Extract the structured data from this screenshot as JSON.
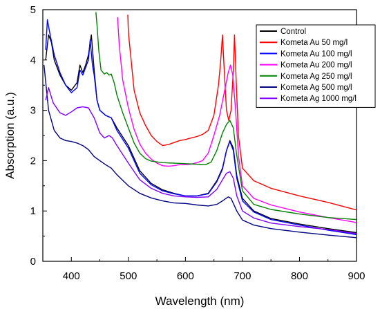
{
  "chart_data": {
    "type": "line",
    "title": "",
    "xlabel": "Wavelength (nm)",
    "ylabel": "Absorption (a.u.)",
    "xlim": [
      350,
      900
    ],
    "ylim": [
      0,
      5
    ],
    "xticks": [
      400,
      500,
      600,
      700,
      800,
      900
    ],
    "yticks": [
      0,
      1,
      2,
      3,
      4,
      5
    ],
    "grid": false,
    "legend_position": "top-right",
    "series": [
      {
        "name": "Control",
        "color": "#000000",
        "points": [
          [
            355,
            4.0
          ],
          [
            360,
            4.5
          ],
          [
            365,
            4.35
          ],
          [
            370,
            4.0
          ],
          [
            380,
            3.7
          ],
          [
            390,
            3.5
          ],
          [
            400,
            3.4
          ],
          [
            410,
            3.55
          ],
          [
            415,
            3.9
          ],
          [
            420,
            3.75
          ],
          [
            425,
            3.9
          ],
          [
            430,
            4.1
          ],
          [
            435,
            4.5
          ],
          [
            440,
            3.8
          ],
          [
            445,
            3.2
          ],
          [
            450,
            3.0
          ],
          [
            455,
            2.95
          ],
          [
            460,
            2.9
          ],
          [
            470,
            2.85
          ],
          [
            480,
            2.65
          ],
          [
            500,
            2.3
          ],
          [
            520,
            1.8
          ],
          [
            540,
            1.55
          ],
          [
            560,
            1.42
          ],
          [
            580,
            1.35
          ],
          [
            600,
            1.3
          ],
          [
            620,
            1.3
          ],
          [
            640,
            1.35
          ],
          [
            655,
            1.6
          ],
          [
            665,
            1.85
          ],
          [
            672,
            2.2
          ],
          [
            678,
            2.4
          ],
          [
            684,
            2.25
          ],
          [
            690,
            1.7
          ],
          [
            700,
            1.25
          ],
          [
            720,
            1.0
          ],
          [
            750,
            0.85
          ],
          [
            800,
            0.74
          ],
          [
            850,
            0.65
          ],
          [
            900,
            0.57
          ]
        ]
      },
      {
        "name": "Kometa Au 50 mg/l",
        "color": "#ff0000",
        "points": [
          [
            499,
            4.9
          ],
          [
            500,
            4.55
          ],
          [
            510,
            3.4
          ],
          [
            520,
            2.95
          ],
          [
            530,
            2.7
          ],
          [
            540,
            2.5
          ],
          [
            550,
            2.38
          ],
          [
            560,
            2.3
          ],
          [
            570,
            2.32
          ],
          [
            580,
            2.36
          ],
          [
            590,
            2.4
          ],
          [
            600,
            2.42
          ],
          [
            610,
            2.45
          ],
          [
            620,
            2.48
          ],
          [
            630,
            2.52
          ],
          [
            640,
            2.6
          ],
          [
            650,
            2.9
          ],
          [
            658,
            3.5
          ],
          [
            662,
            4.0
          ],
          [
            665,
            4.5
          ],
          [
            668,
            3.8
          ],
          [
            672,
            3.0
          ],
          [
            676,
            2.8
          ],
          [
            680,
            3.0
          ],
          [
            684,
            3.8
          ],
          [
            686,
            4.5
          ],
          [
            689,
            3.6
          ],
          [
            693,
            2.5
          ],
          [
            700,
            1.85
          ],
          [
            720,
            1.6
          ],
          [
            750,
            1.45
          ],
          [
            800,
            1.3
          ],
          [
            850,
            1.17
          ],
          [
            900,
            1.02
          ]
        ]
      },
      {
        "name": "Kometa Au 100 mg/l",
        "color": "#0000ff",
        "points": [
          [
            355,
            4.2
          ],
          [
            358,
            4.8
          ],
          [
            362,
            4.55
          ],
          [
            370,
            4.1
          ],
          [
            380,
            3.75
          ],
          [
            390,
            3.5
          ],
          [
            400,
            3.35
          ],
          [
            410,
            3.45
          ],
          [
            415,
            3.8
          ],
          [
            420,
            3.7
          ],
          [
            425,
            3.85
          ],
          [
            430,
            4.0
          ],
          [
            433,
            4.4
          ],
          [
            437,
            3.9
          ],
          [
            440,
            3.7
          ],
          [
            445,
            3.2
          ],
          [
            450,
            3.0
          ],
          [
            455,
            2.95
          ],
          [
            460,
            2.9
          ],
          [
            470,
            2.85
          ],
          [
            480,
            2.6
          ],
          [
            500,
            2.25
          ],
          [
            520,
            1.75
          ],
          [
            540,
            1.52
          ],
          [
            560,
            1.4
          ],
          [
            580,
            1.34
          ],
          [
            600,
            1.3
          ],
          [
            620,
            1.3
          ],
          [
            640,
            1.34
          ],
          [
            655,
            1.58
          ],
          [
            665,
            1.83
          ],
          [
            672,
            2.2
          ],
          [
            678,
            2.38
          ],
          [
            684,
            2.2
          ],
          [
            690,
            1.65
          ],
          [
            700,
            1.2
          ],
          [
            720,
            0.98
          ],
          [
            750,
            0.83
          ],
          [
            800,
            0.72
          ],
          [
            850,
            0.62
          ],
          [
            900,
            0.53
          ]
        ]
      },
      {
        "name": "Kometa Au 200 mg/l",
        "color": "#ff00ff",
        "points": [
          [
            481,
            4.85
          ],
          [
            484,
            4.3
          ],
          [
            490,
            3.6
          ],
          [
            500,
            3.05
          ],
          [
            510,
            2.62
          ],
          [
            520,
            2.33
          ],
          [
            530,
            2.15
          ],
          [
            540,
            2.03
          ],
          [
            550,
            1.95
          ],
          [
            560,
            1.9
          ],
          [
            570,
            1.89
          ],
          [
            580,
            1.9
          ],
          [
            590,
            1.92
          ],
          [
            600,
            1.92
          ],
          [
            610,
            1.93
          ],
          [
            620,
            1.96
          ],
          [
            630,
            2.0
          ],
          [
            640,
            2.15
          ],
          [
            650,
            2.5
          ],
          [
            660,
            2.9
          ],
          [
            668,
            3.35
          ],
          [
            675,
            3.75
          ],
          [
            679,
            3.9
          ],
          [
            683,
            3.7
          ],
          [
            688,
            3.0
          ],
          [
            693,
            2.1
          ],
          [
            700,
            1.5
          ],
          [
            720,
            1.25
          ],
          [
            750,
            1.12
          ],
          [
            800,
            0.98
          ],
          [
            850,
            0.87
          ],
          [
            900,
            0.77
          ]
        ]
      },
      {
        "name": "Kometa Ag 250 mg/l",
        "color": "#008000",
        "points": [
          [
            443,
            4.95
          ],
          [
            445,
            4.7
          ],
          [
            448,
            4.2
          ],
          [
            452,
            3.8
          ],
          [
            458,
            3.72
          ],
          [
            462,
            3.75
          ],
          [
            466,
            3.7
          ],
          [
            470,
            3.72
          ],
          [
            475,
            3.55
          ],
          [
            480,
            3.3
          ],
          [
            490,
            2.95
          ],
          [
            500,
            2.65
          ],
          [
            510,
            2.35
          ],
          [
            520,
            2.15
          ],
          [
            530,
            2.04
          ],
          [
            540,
            1.99
          ],
          [
            560,
            1.96
          ],
          [
            580,
            1.95
          ],
          [
            600,
            1.94
          ],
          [
            620,
            1.93
          ],
          [
            635,
            1.92
          ],
          [
            645,
            1.97
          ],
          [
            655,
            2.2
          ],
          [
            665,
            2.55
          ],
          [
            672,
            2.72
          ],
          [
            678,
            2.8
          ],
          [
            684,
            2.65
          ],
          [
            690,
            2.1
          ],
          [
            700,
            1.4
          ],
          [
            720,
            1.13
          ],
          [
            750,
            1.03
          ],
          [
            800,
            0.94
          ],
          [
            850,
            0.87
          ],
          [
            900,
            0.83
          ]
        ]
      },
      {
        "name": "Kometa Ag 500 mg/l",
        "color": "#000080",
        "points": [
          [
            352,
            3.9
          ],
          [
            360,
            3.0
          ],
          [
            370,
            2.6
          ],
          [
            380,
            2.45
          ],
          [
            390,
            2.4
          ],
          [
            400,
            2.38
          ],
          [
            410,
            2.35
          ],
          [
            420,
            2.3
          ],
          [
            430,
            2.22
          ],
          [
            440,
            2.08
          ],
          [
            450,
            2.0
          ],
          [
            460,
            1.92
          ],
          [
            470,
            1.85
          ],
          [
            480,
            1.72
          ],
          [
            500,
            1.5
          ],
          [
            520,
            1.35
          ],
          [
            540,
            1.26
          ],
          [
            560,
            1.2
          ],
          [
            580,
            1.16
          ],
          [
            600,
            1.15
          ],
          [
            620,
            1.12
          ],
          [
            640,
            1.1
          ],
          [
            655,
            1.13
          ],
          [
            665,
            1.2
          ],
          [
            675,
            1.28
          ],
          [
            680,
            1.25
          ],
          [
            690,
            1.0
          ],
          [
            700,
            0.82
          ],
          [
            720,
            0.72
          ],
          [
            750,
            0.65
          ],
          [
            800,
            0.58
          ],
          [
            850,
            0.52
          ],
          [
            900,
            0.47
          ]
        ]
      },
      {
        "name": "Kometa Ag 1000 mg/l",
        "color": "#8000ff",
        "points": [
          [
            355,
            3.2
          ],
          [
            360,
            3.45
          ],
          [
            368,
            3.15
          ],
          [
            380,
            2.95
          ],
          [
            390,
            2.9
          ],
          [
            400,
            2.97
          ],
          [
            410,
            3.05
          ],
          [
            420,
            3.07
          ],
          [
            430,
            3.05
          ],
          [
            440,
            2.85
          ],
          [
            445,
            2.7
          ],
          [
            450,
            2.55
          ],
          [
            458,
            2.45
          ],
          [
            466,
            2.5
          ],
          [
            472,
            2.45
          ],
          [
            480,
            2.3
          ],
          [
            500,
            1.95
          ],
          [
            520,
            1.62
          ],
          [
            540,
            1.45
          ],
          [
            560,
            1.35
          ],
          [
            580,
            1.3
          ],
          [
            600,
            1.28
          ],
          [
            620,
            1.27
          ],
          [
            640,
            1.28
          ],
          [
            655,
            1.43
          ],
          [
            665,
            1.62
          ],
          [
            672,
            1.75
          ],
          [
            678,
            1.78
          ],
          [
            684,
            1.65
          ],
          [
            690,
            1.3
          ],
          [
            700,
            1.0
          ],
          [
            720,
            0.86
          ],
          [
            750,
            0.76
          ],
          [
            800,
            0.69
          ],
          [
            850,
            0.63
          ],
          [
            900,
            0.55
          ]
        ]
      }
    ]
  }
}
